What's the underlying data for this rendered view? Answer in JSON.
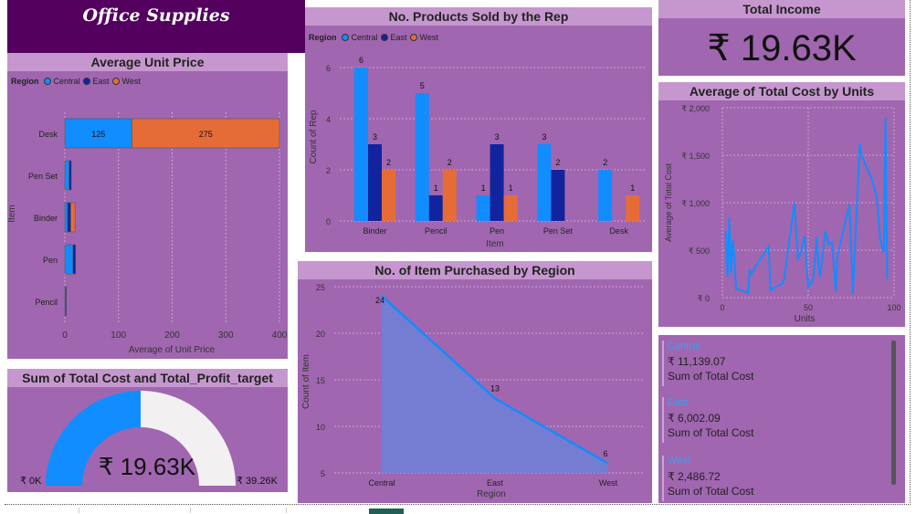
{
  "page": {
    "banner_title": "Office Supplies"
  },
  "colors": {
    "central": "#118dff",
    "east": "#12239e",
    "west": "#e66c37",
    "tile_bg": "#a066b0",
    "title_bg": "#c697cf",
    "banner_bg": "#53005f"
  },
  "legend": {
    "label": "Region",
    "central": "Central",
    "east": "East",
    "west": "West"
  },
  "kpi": {
    "title": "Total Income",
    "value": "₹ 19.63K"
  },
  "gauge": {
    "title": "Sum of Total Cost and Total_Profit_target",
    "value_label": "₹ 19.63K",
    "min_label": "₹ 0K",
    "max_label": "₹ 39.26K",
    "value": 19.63,
    "min": 0,
    "max": 39.26
  },
  "cards": [
    {
      "region": "Central",
      "value": "₹ 11,139.07",
      "label": "Sum of Total Cost"
    },
    {
      "region": "East",
      "value": "₹ 6,002.09",
      "label": "Sum of Total Cost"
    },
    {
      "region": "West",
      "value": "₹ 2,486.72",
      "label": "Sum of Total Cost"
    }
  ],
  "chart_data": [
    {
      "id": "avg_unit_price",
      "type": "bar",
      "orientation": "horizontal",
      "stacked": true,
      "title": "Average Unit Price",
      "xlabel": "Average of Unit Price",
      "ylabel": "Item",
      "categories": [
        "Desk",
        "Pen Set",
        "Binder",
        "Pen",
        "Pencil"
      ],
      "series": [
        {
          "name": "Central",
          "values": [
            125,
            8,
            5,
            15,
            1
          ]
        },
        {
          "name": "East",
          "values": [
            0,
            4,
            6,
            5,
            1
          ]
        },
        {
          "name": "West",
          "values": [
            275,
            0,
            8,
            0,
            0
          ]
        }
      ],
      "data_labels": {
        "Desk": [
          "125",
          "",
          "275"
        ]
      },
      "xticks": [
        "0",
        "100",
        "200",
        "300",
        "400"
      ],
      "xlim": [
        0,
        400
      ],
      "legend_position": "top-left"
    },
    {
      "id": "products_sold",
      "type": "bar",
      "orientation": "vertical",
      "title": "No. Products Sold by the Rep",
      "xlabel": "Item",
      "ylabel": "Count of Rep",
      "categories": [
        "Binder",
        "Pencil",
        "Pen",
        "Pen Set",
        "Desk"
      ],
      "series": [
        {
          "name": "Central",
          "values": [
            6,
            5,
            1,
            3,
            2
          ]
        },
        {
          "name": "East",
          "values": [
            3,
            1,
            3,
            2,
            null
          ]
        },
        {
          "name": "West",
          "values": [
            2,
            2,
            1,
            null,
            1
          ]
        }
      ],
      "yticks": [
        "0",
        "2",
        "4",
        "6"
      ],
      "ylim": [
        0,
        6.5
      ],
      "legend_position": "top-left"
    },
    {
      "id": "items_by_region",
      "type": "area",
      "title": "No. of Item Purchased by Region",
      "xlabel": "Region",
      "ylabel": "Count of Item",
      "categories": [
        "Central",
        "East",
        "West"
      ],
      "values": [
        24,
        13,
        6
      ],
      "yticks": [
        "5",
        "10",
        "15",
        "20",
        "25"
      ],
      "ylim": [
        5,
        25
      ]
    },
    {
      "id": "avg_cost_by_units",
      "type": "line",
      "title": "Average of Total Cost by Units",
      "xlabel": "Units",
      "ylabel": "Average of Total Cost",
      "x": [
        2,
        3,
        4,
        5,
        6,
        7,
        8,
        11,
        15,
        16,
        17,
        19,
        27,
        28,
        29,
        32,
        35,
        36,
        42,
        44,
        46,
        48,
        50,
        53,
        55,
        56,
        57,
        60,
        62,
        64,
        66,
        67,
        74,
        76,
        80,
        81,
        87,
        90,
        92,
        94,
        95,
        96
      ],
      "y": [
        700,
        220,
        840,
        260,
        600,
        430,
        90,
        80,
        50,
        300,
        250,
        320,
        540,
        80,
        90,
        120,
        150,
        200,
        1000,
        400,
        500,
        650,
        110,
        190,
        640,
        350,
        220,
        700,
        560,
        580,
        60,
        440,
        980,
        40,
        1620,
        1500,
        1250,
        1050,
        600,
        480,
        1890,
        200
      ],
      "yticks": [
        "₹ 0",
        "₹ 500",
        "₹ 1,000",
        "₹ 1,500",
        "₹ 2,000"
      ],
      "xticks": [
        "0",
        "50",
        "100"
      ],
      "xlim": [
        0,
        100
      ],
      "ylim": [
        0,
        2000
      ]
    }
  ]
}
